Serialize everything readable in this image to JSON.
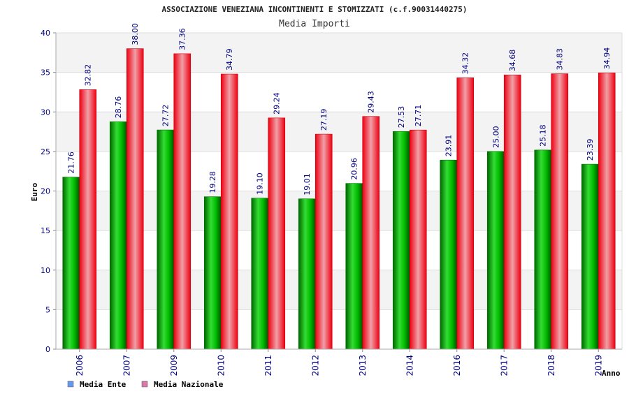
{
  "chart_data": {
    "type": "bar",
    "title": "ASSOCIAZIONE VENEZIANA INCONTINENTI E STOMIZZATI (c.f.90031440275)",
    "subtitle": "Media Importi",
    "xlabel": "Anno",
    "ylabel": "Euro",
    "ylim": [
      0,
      40
    ],
    "yticks": [
      0,
      5,
      10,
      15,
      20,
      25,
      30,
      35,
      40
    ],
    "grid": true,
    "legend_position": "bottom-left",
    "categories": [
      "2006",
      "2007",
      "2009",
      "2010",
      "2011",
      "2012",
      "2013",
      "2014",
      "2016",
      "2017",
      "2018",
      "2019"
    ],
    "series": [
      {
        "name": "Media Ente",
        "color": "#00aa00",
        "legend_color": "#6699ee",
        "values": [
          21.76,
          28.76,
          27.72,
          19.28,
          19.1,
          19.01,
          20.96,
          27.53,
          23.91,
          25.0,
          25.18,
          23.39
        ],
        "labels": [
          "21.76",
          "28.76",
          "27.72",
          "19.28",
          "19.10",
          "19.01",
          "20.96",
          "27.53",
          "23.91",
          "25.00",
          "25.18",
          "23.39"
        ]
      },
      {
        "name": "Media Nazionale",
        "color": "#ee1122",
        "legend_color": "#dd77aa",
        "values": [
          32.82,
          38.0,
          37.36,
          34.79,
          29.24,
          27.19,
          29.43,
          27.71,
          34.32,
          34.68,
          34.83,
          34.94
        ],
        "labels": [
          "32.82",
          "38.00",
          "37.36",
          "34.79",
          "29.24",
          "27.19",
          "29.43",
          "27.71",
          "34.32",
          "34.68",
          "34.83",
          "34.94"
        ]
      }
    ]
  }
}
